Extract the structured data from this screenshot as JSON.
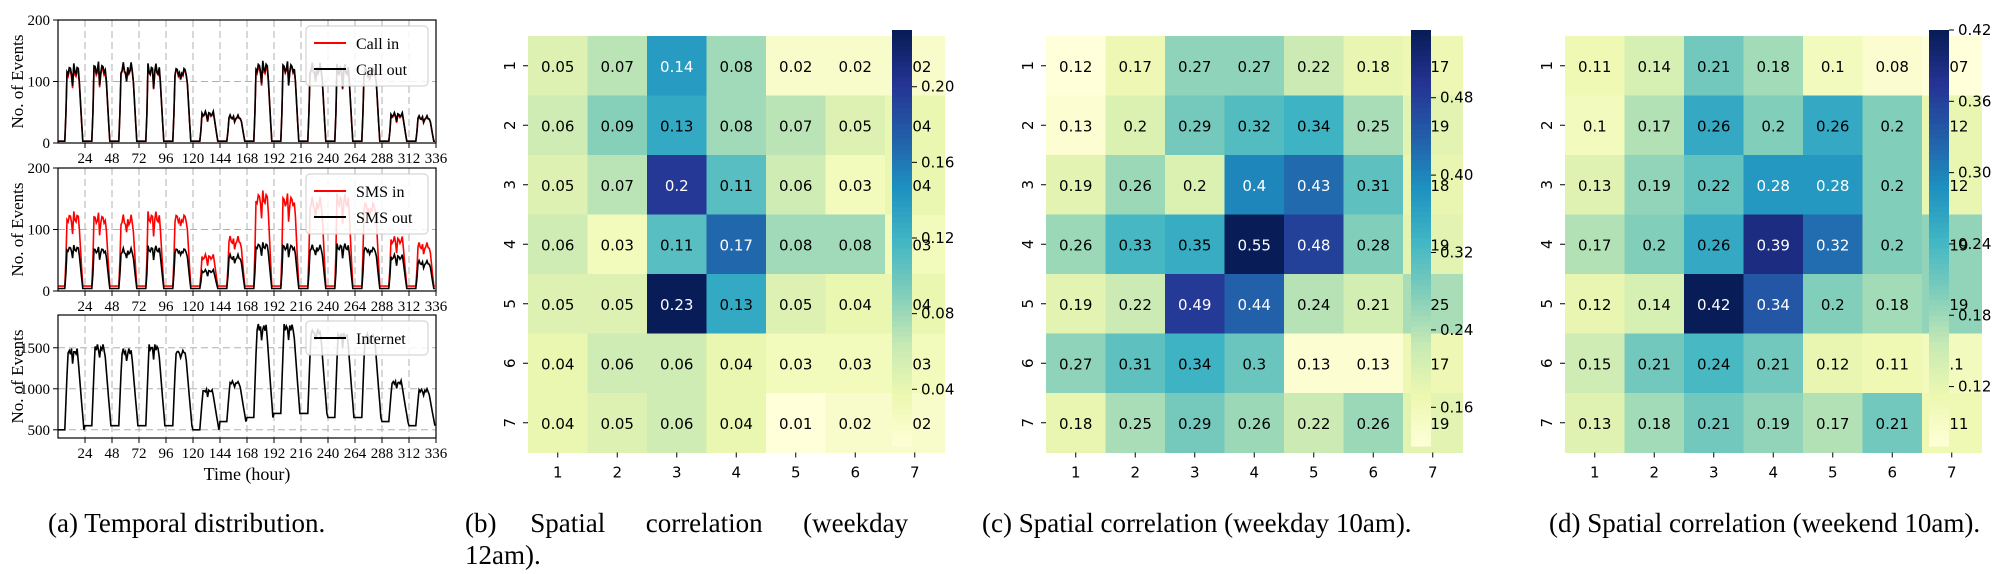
{
  "captions": {
    "a": "(a)  Temporal distribution.",
    "b_line1": "(b)     Spatial      correlation      (weekday",
    "b_line2": "12am).",
    "c": "(c)  Spatial correlation (weekday 10am).",
    "d": "(d)  Spatial correlation (weekend 10am)."
  },
  "colors": {
    "call_in": "#ff0000",
    "call_out": "#000000",
    "sms_in": "#ff0000",
    "sms_out": "#000000",
    "internet": "#000000",
    "colormap": [
      "#ffffd9",
      "#edf8b1",
      "#c7e9b4",
      "#7fcdbb",
      "#41b6c4",
      "#1d91c0",
      "#225ea8",
      "#253494",
      "#081d58"
    ]
  },
  "chart_data": [
    {
      "type": "line",
      "panel": "a",
      "subplots": [
        {
          "ylabel": "No. of Events",
          "ylim": [
            0,
            200
          ],
          "yticks": [
            "0",
            "100",
            "200"
          ],
          "xlim": [
            0,
            336
          ],
          "xticks": [
            "24",
            "48",
            "72",
            "96",
            "120",
            "144",
            "168",
            "192",
            "216",
            "240",
            "264",
            "288",
            "312",
            "336"
          ],
          "grid": true,
          "legend_position": "top-right",
          "series": [
            {
              "name": "Call in",
              "daily_peak": [
                125,
                128,
                130,
                128,
                126,
                50,
                45,
                130,
                132,
                130,
                128,
                126,
                48,
                44
              ],
              "baseline": 3
            },
            {
              "name": "Call out",
              "daily_peak": [
                130,
                133,
                132,
                130,
                128,
                52,
                46,
                135,
                134,
                132,
                130,
                128,
                50,
                45
              ],
              "baseline": 3
            }
          ]
        },
        {
          "ylabel": "No. of Events",
          "ylim": [
            0,
            200
          ],
          "yticks": [
            "0",
            "100",
            "200"
          ],
          "xlim": [
            0,
            336
          ],
          "xticks": [
            "24",
            "48",
            "72",
            "96",
            "120",
            "144",
            "168",
            "192",
            "216",
            "240",
            "264",
            "288",
            "312",
            "336"
          ],
          "grid": true,
          "legend_position": "top-right",
          "series": [
            {
              "name": "SMS in",
              "daily_peak": [
                130,
                128,
                125,
                130,
                130,
                60,
                90,
                165,
                160,
                155,
                160,
                150,
                90,
                80
              ],
              "baseline": 8
            },
            {
              "name": "SMS out",
              "daily_peak": [
                75,
                72,
                70,
                74,
                72,
                35,
                60,
                80,
                78,
                76,
                78,
                74,
                60,
                50
              ],
              "baseline": 4
            }
          ]
        },
        {
          "ylabel": "No. of Events",
          "xlabel": "Time (hour)",
          "ylim": [
            400,
            1900
          ],
          "yticks": [
            "500",
            "1000",
            "1500"
          ],
          "xlim": [
            0,
            336
          ],
          "xticks": [
            "24",
            "48",
            "72",
            "96",
            "120",
            "144",
            "168",
            "192",
            "216",
            "240",
            "264",
            "288",
            "312",
            "336"
          ],
          "grid": true,
          "legend_position": "top-right",
          "series": [
            {
              "name": "Internet",
              "daily_peak": [
                1500,
                1550,
                1500,
                1550,
                1500,
                1000,
                1100,
                1800,
                1800,
                1750,
                1700,
                1700,
                1100,
                1000
              ],
              "daily_trough": [
                500,
                550,
                550,
                550,
                550,
                500,
                600,
                650,
                700,
                700,
                650,
                650,
                600,
                550
              ]
            }
          ]
        }
      ]
    },
    {
      "type": "heatmap",
      "panel": "b",
      "x_categories": [
        "1",
        "2",
        "3",
        "4",
        "5",
        "6",
        "7"
      ],
      "y_categories": [
        "1",
        "2",
        "3",
        "4",
        "5",
        "6",
        "7"
      ],
      "zlim": [
        0.01,
        0.23
      ],
      "colorbar_ticks": [
        "0.04",
        "0.08",
        "0.12",
        "0.16",
        "0.20"
      ],
      "colorbar_tick_values": [
        0.04,
        0.08,
        0.12,
        0.16,
        0.2
      ],
      "values": [
        [
          "0.05",
          "0.07",
          "0.14",
          "0.08",
          "0.02",
          "0.02",
          "0.02"
        ],
        [
          "0.06",
          "0.09",
          "0.13",
          "0.08",
          "0.07",
          "0.05",
          "0.04"
        ],
        [
          "0.05",
          "0.07",
          "0.2",
          "0.11",
          "0.06",
          "0.03",
          "0.04"
        ],
        [
          "0.06",
          "0.03",
          "0.11",
          "0.17",
          "0.08",
          "0.08",
          "0.03"
        ],
        [
          "0.05",
          "0.05",
          "0.23",
          "0.13",
          "0.05",
          "0.04",
          "0.04"
        ],
        [
          "0.04",
          "0.06",
          "0.06",
          "0.04",
          "0.03",
          "0.03",
          "0.03"
        ],
        [
          "0.04",
          "0.05",
          "0.06",
          "0.04",
          "0.01",
          "0.02",
          "0.02"
        ]
      ]
    },
    {
      "type": "heatmap",
      "panel": "c",
      "x_categories": [
        "1",
        "2",
        "3",
        "4",
        "5",
        "6",
        "7"
      ],
      "y_categories": [
        "1",
        "2",
        "3",
        "4",
        "5",
        "6",
        "7"
      ],
      "zlim": [
        0.12,
        0.55
      ],
      "colorbar_ticks": [
        "0.16",
        "0.24",
        "0.32",
        "0.40",
        "0.48"
      ],
      "colorbar_tick_values": [
        0.16,
        0.24,
        0.32,
        0.4,
        0.48
      ],
      "values": [
        [
          "0.12",
          "0.17",
          "0.27",
          "0.27",
          "0.22",
          "0.18",
          "0.17"
        ],
        [
          "0.13",
          "0.2",
          "0.29",
          "0.32",
          "0.34",
          "0.25",
          "0.19"
        ],
        [
          "0.19",
          "0.26",
          "0.2",
          "0.4",
          "0.43",
          "0.31",
          "0.18"
        ],
        [
          "0.26",
          "0.33",
          "0.35",
          "0.55",
          "0.48",
          "0.28",
          "0.19"
        ],
        [
          "0.19",
          "0.22",
          "0.49",
          "0.44",
          "0.24",
          "0.21",
          "0.25"
        ],
        [
          "0.27",
          "0.31",
          "0.34",
          "0.3",
          "0.13",
          "0.13",
          "0.17"
        ],
        [
          "0.18",
          "0.25",
          "0.29",
          "0.26",
          "0.22",
          "0.26",
          "0.19"
        ]
      ]
    },
    {
      "type": "heatmap",
      "panel": "d",
      "x_categories": [
        "1",
        "2",
        "3",
        "4",
        "5",
        "6",
        "7"
      ],
      "y_categories": [
        "1",
        "2",
        "3",
        "4",
        "5",
        "6",
        "7"
      ],
      "zlim": [
        0.07,
        0.42
      ],
      "colorbar_ticks": [
        "0.12",
        "0.18",
        "0.24",
        "0.30",
        "0.36",
        "0.42"
      ],
      "colorbar_tick_values": [
        0.12,
        0.18,
        0.24,
        0.3,
        0.36,
        0.42
      ],
      "values": [
        [
          "0.11",
          "0.14",
          "0.21",
          "0.18",
          "0.1",
          "0.08",
          "0.07"
        ],
        [
          "0.1",
          "0.17",
          "0.26",
          "0.2",
          "0.26",
          "0.2",
          "0.12"
        ],
        [
          "0.13",
          "0.19",
          "0.22",
          "0.28",
          "0.28",
          "0.2",
          "0.12"
        ],
        [
          "0.17",
          "0.2",
          "0.26",
          "0.39",
          "0.32",
          "0.2",
          "0.19"
        ],
        [
          "0.12",
          "0.14",
          "0.42",
          "0.34",
          "0.2",
          "0.18",
          "0.19"
        ],
        [
          "0.15",
          "0.21",
          "0.24",
          "0.21",
          "0.12",
          "0.11",
          "0.1"
        ],
        [
          "0.13",
          "0.18",
          "0.21",
          "0.19",
          "0.17",
          "0.21",
          "0.11"
        ]
      ]
    }
  ]
}
